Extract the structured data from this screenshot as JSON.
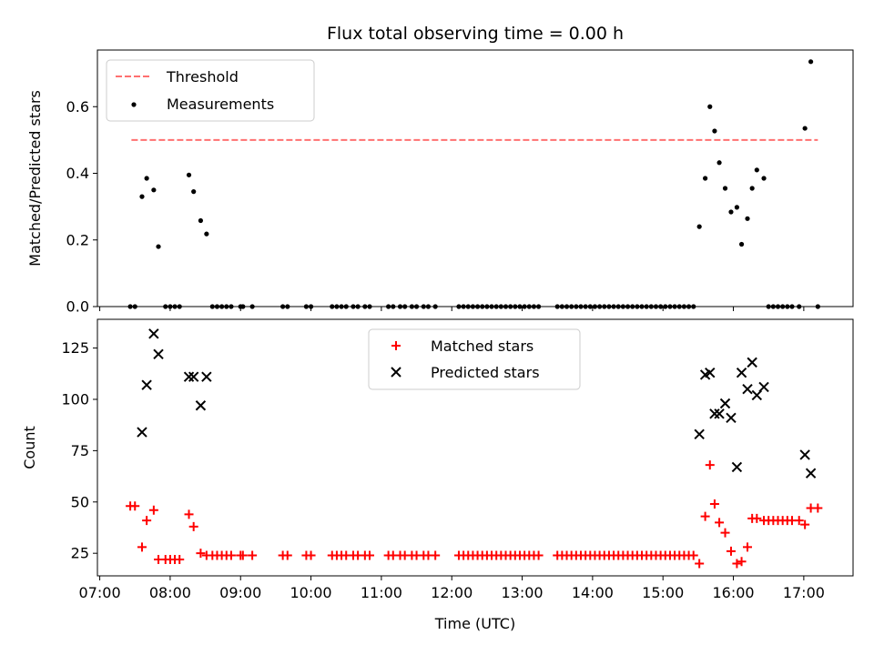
{
  "chart_data": [
    {
      "type": "scatter",
      "title": "Flux total observing time = 0.00 h",
      "xlabel": "",
      "ylabel": "Matched/Predicted stars",
      "xlim": [
        "06:58",
        "17:42"
      ],
      "ylim": [
        0,
        0.77
      ],
      "x_ticks": [
        "07:00",
        "08:00",
        "09:00",
        "10:00",
        "11:00",
        "12:00",
        "13:00",
        "14:00",
        "15:00",
        "16:00",
        "17:00"
      ],
      "y_ticks": [
        "0.0",
        "0.2",
        "0.4",
        "0.6"
      ],
      "legend": {
        "position": "top-left",
        "entries": [
          "Threshold",
          "Measurements"
        ]
      },
      "threshold": {
        "name": "Threshold",
        "color": "#ff7070",
        "style": "dashed",
        "y": 0.5,
        "x_start": "07:27",
        "x_end": "17:12"
      },
      "series": [
        {
          "name": "Measurements",
          "color": "#000000",
          "marker": "dot",
          "points": [
            [
              "07:26",
              0
            ],
            [
              "07:30",
              0
            ],
            [
              "07:36",
              0.33
            ],
            [
              "07:40",
              0.385
            ],
            [
              "07:46",
              0.35
            ],
            [
              "07:50",
              0.18
            ],
            [
              "07:56",
              0
            ],
            [
              "08:00",
              0
            ],
            [
              "08:04",
              0
            ],
            [
              "08:08",
              0
            ],
            [
              "08:16",
              0.395
            ],
            [
              "08:20",
              0.345
            ],
            [
              "08:26",
              0.258
            ],
            [
              "08:31",
              0.218
            ],
            [
              "08:36",
              0
            ],
            [
              "08:40",
              0
            ],
            [
              "08:44",
              0
            ],
            [
              "08:48",
              0
            ],
            [
              "08:52",
              0
            ],
            [
              "09:00",
              0
            ],
            [
              "09:02",
              0
            ],
            [
              "09:10",
              0
            ],
            [
              "09:36",
              0
            ],
            [
              "09:40",
              0
            ],
            [
              "09:56",
              0
            ],
            [
              "10:00",
              0
            ],
            [
              "10:18",
              0
            ],
            [
              "10:22",
              0
            ],
            [
              "10:26",
              0
            ],
            [
              "10:30",
              0
            ],
            [
              "10:36",
              0
            ],
            [
              "10:40",
              0
            ],
            [
              "10:46",
              0
            ],
            [
              "10:50",
              0
            ],
            [
              "11:06",
              0
            ],
            [
              "11:10",
              0
            ],
            [
              "11:16",
              0
            ],
            [
              "11:20",
              0
            ],
            [
              "11:26",
              0
            ],
            [
              "11:30",
              0
            ],
            [
              "11:36",
              0
            ],
            [
              "11:40",
              0
            ],
            [
              "11:46",
              0
            ],
            [
              "12:06",
              0
            ],
            [
              "12:10",
              0
            ],
            [
              "12:14",
              0
            ],
            [
              "12:18",
              0
            ],
            [
              "12:22",
              0
            ],
            [
              "12:26",
              0
            ],
            [
              "12:30",
              0
            ],
            [
              "12:34",
              0
            ],
            [
              "12:38",
              0
            ],
            [
              "12:42",
              0
            ],
            [
              "12:46",
              0
            ],
            [
              "12:50",
              0
            ],
            [
              "12:54",
              0
            ],
            [
              "12:58",
              0
            ],
            [
              "13:02",
              0
            ],
            [
              "13:06",
              0
            ],
            [
              "13:10",
              0
            ],
            [
              "13:14",
              0
            ],
            [
              "13:30",
              0
            ],
            [
              "13:34",
              0
            ],
            [
              "13:38",
              0
            ],
            [
              "13:42",
              0
            ],
            [
              "13:46",
              0
            ],
            [
              "13:50",
              0
            ],
            [
              "13:54",
              0
            ],
            [
              "13:58",
              0
            ],
            [
              "14:02",
              0
            ],
            [
              "14:06",
              0
            ],
            [
              "14:10",
              0
            ],
            [
              "14:14",
              0
            ],
            [
              "14:18",
              0
            ],
            [
              "14:22",
              0
            ],
            [
              "14:26",
              0
            ],
            [
              "14:30",
              0
            ],
            [
              "14:34",
              0
            ],
            [
              "14:38",
              0
            ],
            [
              "14:42",
              0
            ],
            [
              "14:46",
              0
            ],
            [
              "14:50",
              0
            ],
            [
              "14:54",
              0
            ],
            [
              "14:58",
              0
            ],
            [
              "15:02",
              0
            ],
            [
              "15:06",
              0
            ],
            [
              "15:10",
              0
            ],
            [
              "15:14",
              0
            ],
            [
              "15:18",
              0
            ],
            [
              "15:22",
              0
            ],
            [
              "15:26",
              0
            ],
            [
              "15:31",
              0.24
            ],
            [
              "15:36",
              0.385
            ],
            [
              "15:40",
              0.6
            ],
            [
              "15:44",
              0.527
            ],
            [
              "15:48",
              0.432
            ],
            [
              "15:53",
              0.355
            ],
            [
              "15:58",
              0.284
            ],
            [
              "16:03",
              0.298
            ],
            [
              "16:07",
              0.187
            ],
            [
              "16:12",
              0.264
            ],
            [
              "16:16",
              0.355
            ],
            [
              "16:20",
              0.41
            ],
            [
              "16:26",
              0.385
            ],
            [
              "16:30",
              0
            ],
            [
              "16:34",
              0
            ],
            [
              "16:38",
              0
            ],
            [
              "16:42",
              0
            ],
            [
              "16:46",
              0
            ],
            [
              "16:50",
              0
            ],
            [
              "16:56",
              0
            ],
            [
              "17:01",
              0.535
            ],
            [
              "17:06",
              0.735
            ],
            [
              "17:12",
              0
            ]
          ]
        }
      ]
    },
    {
      "type": "scatter",
      "title": "",
      "xlabel": "Time (UTC)",
      "ylabel": "Count",
      "xlim": [
        "06:58",
        "17:42"
      ],
      "ylim": [
        14,
        139
      ],
      "x_ticks": [
        "07:00",
        "08:00",
        "09:00",
        "10:00",
        "11:00",
        "12:00",
        "13:00",
        "14:00",
        "15:00",
        "16:00",
        "17:00"
      ],
      "y_ticks": [
        "25",
        "50",
        "75",
        "100",
        "125"
      ],
      "legend": {
        "position": "top-center",
        "entries": [
          "Matched stars",
          "Predicted stars"
        ]
      },
      "series": [
        {
          "name": "Matched stars",
          "color": "#ff0000",
          "marker": "plus",
          "points": [
            [
              "07:26",
              48
            ],
            [
              "07:30",
              48
            ],
            [
              "07:36",
              28
            ],
            [
              "07:40",
              41
            ],
            [
              "07:46",
              46
            ],
            [
              "07:50",
              22
            ],
            [
              "07:56",
              22
            ],
            [
              "08:00",
              22
            ],
            [
              "08:04",
              22
            ],
            [
              "08:08",
              22
            ],
            [
              "08:16",
              44
            ],
            [
              "08:20",
              38
            ],
            [
              "08:26",
              25
            ],
            [
              "08:31",
              24
            ],
            [
              "08:36",
              24
            ],
            [
              "08:40",
              24
            ],
            [
              "08:44",
              24
            ],
            [
              "08:48",
              24
            ],
            [
              "08:52",
              24
            ],
            [
              "09:00",
              24
            ],
            [
              "09:02",
              24
            ],
            [
              "09:10",
              24
            ],
            [
              "09:36",
              24
            ],
            [
              "09:40",
              24
            ],
            [
              "09:56",
              24
            ],
            [
              "10:00",
              24
            ],
            [
              "10:18",
              24
            ],
            [
              "10:22",
              24
            ],
            [
              "10:26",
              24
            ],
            [
              "10:30",
              24
            ],
            [
              "10:36",
              24
            ],
            [
              "10:40",
              24
            ],
            [
              "10:46",
              24
            ],
            [
              "10:50",
              24
            ],
            [
              "11:06",
              24
            ],
            [
              "11:10",
              24
            ],
            [
              "11:16",
              24
            ],
            [
              "11:20",
              24
            ],
            [
              "11:26",
              24
            ],
            [
              "11:30",
              24
            ],
            [
              "11:36",
              24
            ],
            [
              "11:40",
              24
            ],
            [
              "11:46",
              24
            ],
            [
              "12:06",
              24
            ],
            [
              "12:10",
              24
            ],
            [
              "12:14",
              24
            ],
            [
              "12:18",
              24
            ],
            [
              "12:22",
              24
            ],
            [
              "12:26",
              24
            ],
            [
              "12:30",
              24
            ],
            [
              "12:34",
              24
            ],
            [
              "12:38",
              24
            ],
            [
              "12:42",
              24
            ],
            [
              "12:46",
              24
            ],
            [
              "12:50",
              24
            ],
            [
              "12:54",
              24
            ],
            [
              "12:58",
              24
            ],
            [
              "13:02",
              24
            ],
            [
              "13:06",
              24
            ],
            [
              "13:10",
              24
            ],
            [
              "13:14",
              24
            ],
            [
              "13:30",
              24
            ],
            [
              "13:34",
              24
            ],
            [
              "13:38",
              24
            ],
            [
              "13:42",
              24
            ],
            [
              "13:46",
              24
            ],
            [
              "13:50",
              24
            ],
            [
              "13:54",
              24
            ],
            [
              "13:58",
              24
            ],
            [
              "14:02",
              24
            ],
            [
              "14:06",
              24
            ],
            [
              "14:10",
              24
            ],
            [
              "14:14",
              24
            ],
            [
              "14:18",
              24
            ],
            [
              "14:22",
              24
            ],
            [
              "14:26",
              24
            ],
            [
              "14:30",
              24
            ],
            [
              "14:34",
              24
            ],
            [
              "14:38",
              24
            ],
            [
              "14:42",
              24
            ],
            [
              "14:46",
              24
            ],
            [
              "14:50",
              24
            ],
            [
              "14:54",
              24
            ],
            [
              "14:58",
              24
            ],
            [
              "15:02",
              24
            ],
            [
              "15:06",
              24
            ],
            [
              "15:10",
              24
            ],
            [
              "15:14",
              24
            ],
            [
              "15:18",
              24
            ],
            [
              "15:22",
              24
            ],
            [
              "15:26",
              24
            ],
            [
              "15:31",
              20
            ],
            [
              "15:36",
              43
            ],
            [
              "15:40",
              68
            ],
            [
              "15:44",
              49
            ],
            [
              "15:48",
              40
            ],
            [
              "15:53",
              35
            ],
            [
              "15:58",
              26
            ],
            [
              "16:03",
              20
            ],
            [
              "16:07",
              21
            ],
            [
              "16:12",
              28
            ],
            [
              "16:16",
              42
            ],
            [
              "16:20",
              42
            ],
            [
              "16:26",
              41
            ],
            [
              "16:30",
              41
            ],
            [
              "16:34",
              41
            ],
            [
              "16:38",
              41
            ],
            [
              "16:42",
              41
            ],
            [
              "16:46",
              41
            ],
            [
              "16:50",
              41
            ],
            [
              "16:56",
              41
            ],
            [
              "17:01",
              39
            ],
            [
              "17:06",
              47
            ],
            [
              "17:12",
              47
            ]
          ]
        },
        {
          "name": "Predicted stars",
          "color": "#000000",
          "marker": "x",
          "points": [
            [
              "07:36",
              84
            ],
            [
              "07:40",
              107
            ],
            [
              "07:46",
              132
            ],
            [
              "07:50",
              122
            ],
            [
              "08:16",
              111
            ],
            [
              "08:20",
              111
            ],
            [
              "08:26",
              97
            ],
            [
              "08:31",
              111
            ],
            [
              "15:31",
              83
            ],
            [
              "15:36",
              112
            ],
            [
              "15:40",
              113
            ],
            [
              "15:44",
              93
            ],
            [
              "15:48",
              93
            ],
            [
              "15:53",
              98
            ],
            [
              "15:58",
              91
            ],
            [
              "16:03",
              67
            ],
            [
              "16:07",
              113
            ],
            [
              "16:12",
              105
            ],
            [
              "16:16",
              118
            ],
            [
              "16:20",
              102
            ],
            [
              "16:26",
              106
            ],
            [
              "17:01",
              73
            ],
            [
              "17:06",
              64
            ]
          ]
        }
      ]
    }
  ]
}
